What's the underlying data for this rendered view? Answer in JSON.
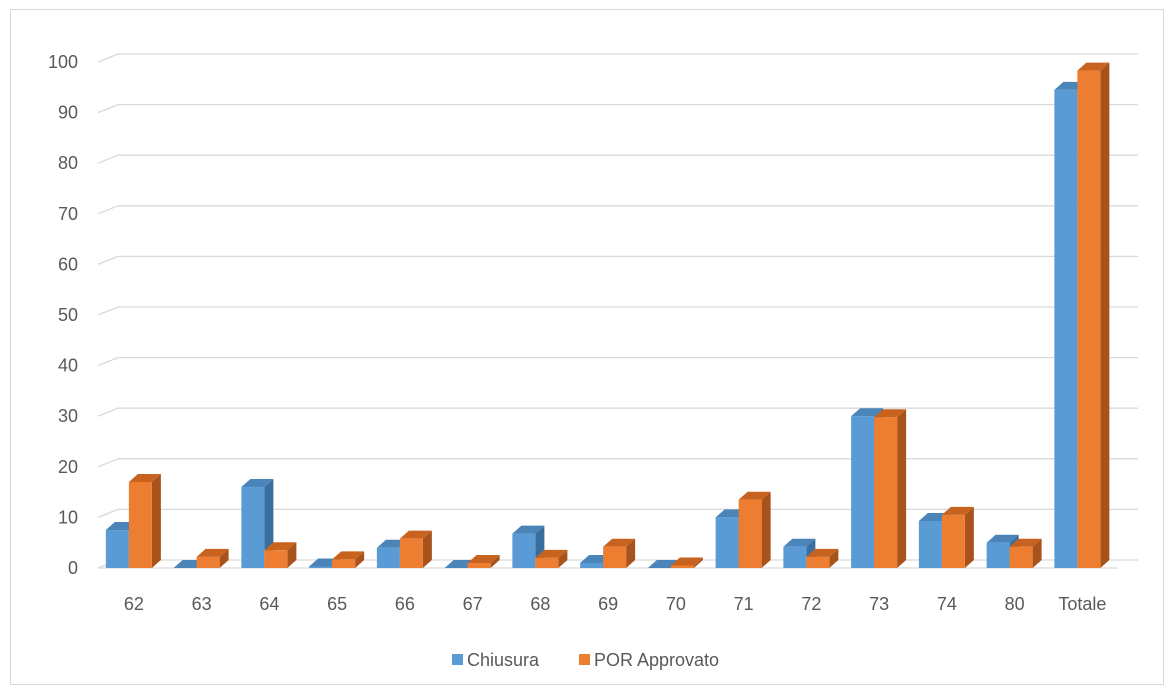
{
  "chart_data": {
    "type": "bar",
    "categories": [
      "62",
      "63",
      "64",
      "65",
      "66",
      "67",
      "68",
      "69",
      "70",
      "71",
      "72",
      "73",
      "74",
      "80",
      "Totale"
    ],
    "series": [
      {
        "name": "Chiusura",
        "color": "#5B9BD5",
        "side_color": "#3A6E9E",
        "top_color": "#4A84B8",
        "values": [
          7.5,
          0,
          16,
          0.3,
          4,
          0,
          6.8,
          1,
          0,
          10,
          4.2,
          30,
          9.3,
          5,
          94.5
        ]
      },
      {
        "name": "POR Approvato",
        "color": "#ED7D31",
        "side_color": "#A8531C",
        "top_color": "#C8631F",
        "values": [
          17,
          2.2,
          3.5,
          1.7,
          5.8,
          1,
          2,
          4.2,
          0.5,
          13.5,
          2.2,
          29.8,
          10.5,
          4.2,
          98.3
        ]
      }
    ],
    "title": "",
    "xlabel": "",
    "ylabel": "",
    "ylim": [
      0,
      100
    ],
    "yticks": [
      0,
      10,
      20,
      30,
      40,
      50,
      60,
      70,
      80,
      90,
      100
    ],
    "grid": true,
    "legend_position": "bottom-center"
  }
}
